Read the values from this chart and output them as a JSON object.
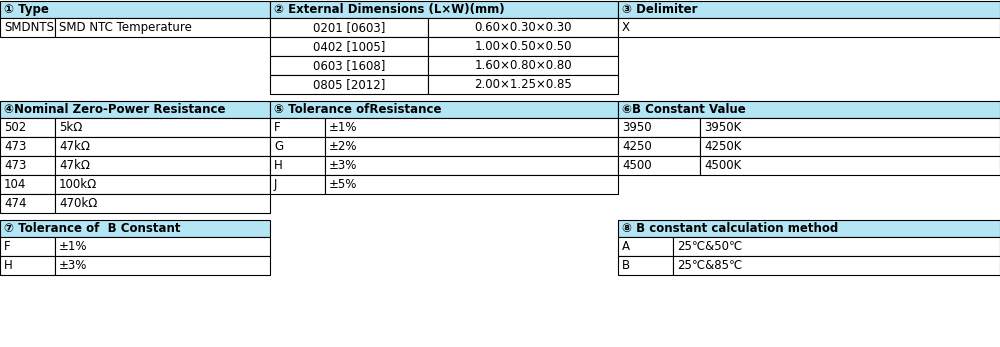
{
  "header_bg": "#b3e5f5",
  "cell_bg": "#ffffff",
  "border_color": "#000000",
  "text_color": "#000000",
  "figsize": [
    10.0,
    3.47
  ],
  "dpi": 100,
  "section1": {
    "title": "① Type",
    "rows": [
      [
        "SMDNTS",
        "SMD NTC Temperature"
      ]
    ]
  },
  "section2": {
    "title": "② External Dimensions (L×W)(mm)",
    "rows": [
      [
        "0201 [0603]",
        "0.60×0.30×0.30"
      ],
      [
        "0402 [1005]",
        "1.00×0.50×0.50"
      ],
      [
        "0603 [1608]",
        "1.60×0.80×0.80"
      ],
      [
        "0805 [2012]",
        "2.00×1.25×0.85"
      ]
    ]
  },
  "section3": {
    "title": "③ Delimiter",
    "rows": [
      [
        "X"
      ]
    ]
  },
  "section4": {
    "title": "④Nominal Zero-Power Resistance",
    "rows": [
      [
        "502",
        "5kΩ"
      ],
      [
        "473",
        "47kΩ"
      ],
      [
        "473",
        "47kΩ"
      ],
      [
        "104",
        "100kΩ"
      ],
      [
        "474",
        "470kΩ"
      ]
    ]
  },
  "section5": {
    "title": "⑤ Tolerance ofResistance",
    "rows": [
      [
        "F",
        "±1%"
      ],
      [
        "G",
        "±2%"
      ],
      [
        "H",
        "±3%"
      ],
      [
        "J",
        "±5%"
      ]
    ]
  },
  "section6": {
    "title": "⑥B Constant Value",
    "rows": [
      [
        "3950",
        "3950K"
      ],
      [
        "4250",
        "4250K"
      ],
      [
        "4500",
        "4500K"
      ]
    ]
  },
  "section7": {
    "title": "⑦ Tolerance of  B Constant",
    "rows": [
      [
        "F",
        "±1%"
      ],
      [
        "H",
        "±3%"
      ]
    ]
  },
  "section8": {
    "title": "⑧ B constant calculation method",
    "rows": [
      [
        "A",
        "25℃&50℃"
      ],
      [
        "B",
        "25℃&85℃"
      ]
    ]
  }
}
